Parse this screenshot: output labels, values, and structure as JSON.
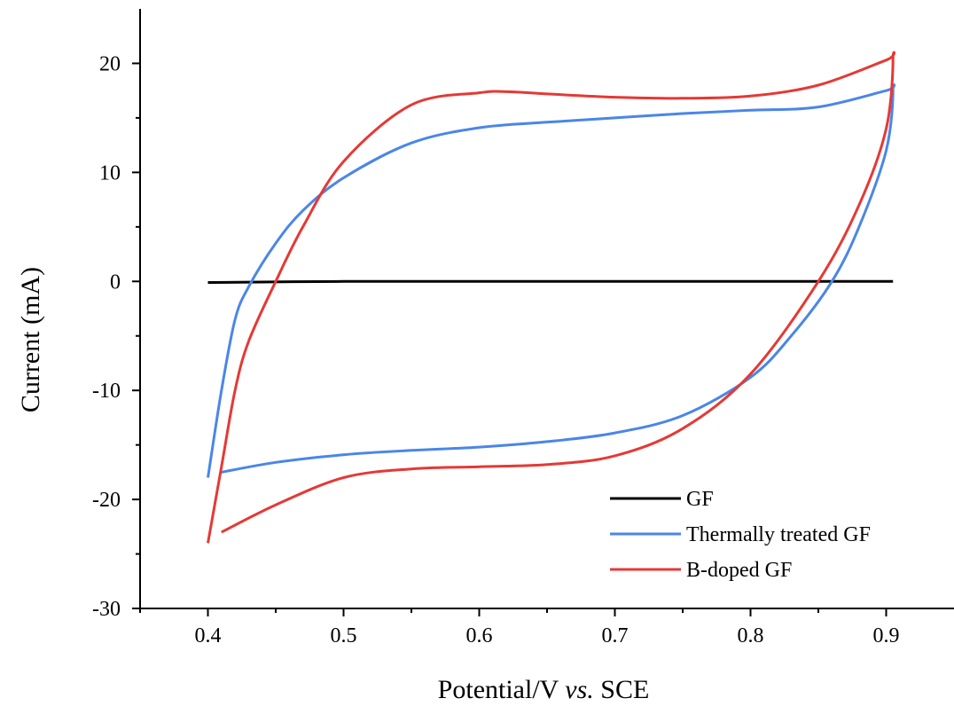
{
  "chart_data": {
    "type": "line",
    "xlabel_main": "Potential/V ",
    "xlabel_italic": "vs.",
    "xlabel_end": " SCE",
    "ylabel": "Current (mA)",
    "xlim": [
      0.35,
      0.95
    ],
    "ylim": [
      -30,
      25
    ],
    "x_ticks": [
      0.4,
      0.5,
      0.6,
      0.7,
      0.8,
      0.9
    ],
    "x_tick_labels": [
      "0.4",
      "0.5",
      "0.6",
      "0.7",
      "0.8",
      "0.9"
    ],
    "y_ticks": [
      -30,
      -20,
      -10,
      0,
      10,
      20
    ],
    "y_tick_labels": [
      "-30",
      "-20",
      "-10",
      "0",
      "10",
      "20"
    ],
    "grid": false,
    "legend_position": "bottom-right",
    "series": [
      {
        "name": "GF",
        "color": "#000000",
        "x": [
          0.4,
          0.5,
          0.6,
          0.7,
          0.8,
          0.905
        ],
        "y": [
          -0.1,
          0.0,
          0.0,
          0.0,
          0.0,
          0.0
        ]
      },
      {
        "name": "Thermally treated GF",
        "color": "#4a86e8",
        "x": [
          0.41,
          0.45,
          0.5,
          0.55,
          0.6,
          0.65,
          0.7,
          0.75,
          0.8,
          0.83,
          0.86,
          0.88,
          0.9,
          0.905,
          0.9,
          0.85,
          0.8,
          0.75,
          0.7,
          0.65,
          0.6,
          0.55,
          0.5,
          0.47,
          0.45,
          0.43,
          0.42,
          0.41,
          0.4
        ],
        "y": [
          -17.5,
          -16.6,
          -15.9,
          -15.5,
          -15.2,
          -14.7,
          -13.9,
          -12.3,
          -8.8,
          -5.0,
          0.0,
          5.0,
          12.0,
          17.6,
          17.5,
          16.0,
          15.7,
          15.4,
          15.0,
          14.6,
          14.1,
          12.7,
          9.5,
          6.5,
          3.5,
          -0.5,
          -3.5,
          -10.0,
          -18.0
        ]
      },
      {
        "name": "B-doped GF",
        "color": "#e53935",
        "x": [
          0.41,
          0.45,
          0.5,
          0.55,
          0.6,
          0.65,
          0.7,
          0.75,
          0.8,
          0.85,
          0.88,
          0.9,
          0.905,
          0.9,
          0.85,
          0.8,
          0.75,
          0.7,
          0.65,
          0.62,
          0.6,
          0.55,
          0.5,
          0.47,
          0.45,
          0.43,
          0.42,
          0.41,
          0.4
        ],
        "y": [
          -23.0,
          -20.5,
          -18.0,
          -17.2,
          -17.0,
          -16.8,
          -16.0,
          -13.5,
          -8.5,
          0.0,
          7.0,
          14.0,
          20.5,
          20.3,
          18.0,
          17.0,
          16.8,
          16.9,
          17.2,
          17.4,
          17.3,
          16.2,
          11.0,
          5.0,
          0.0,
          -5.5,
          -10.0,
          -17.0,
          -24.0
        ]
      }
    ]
  }
}
